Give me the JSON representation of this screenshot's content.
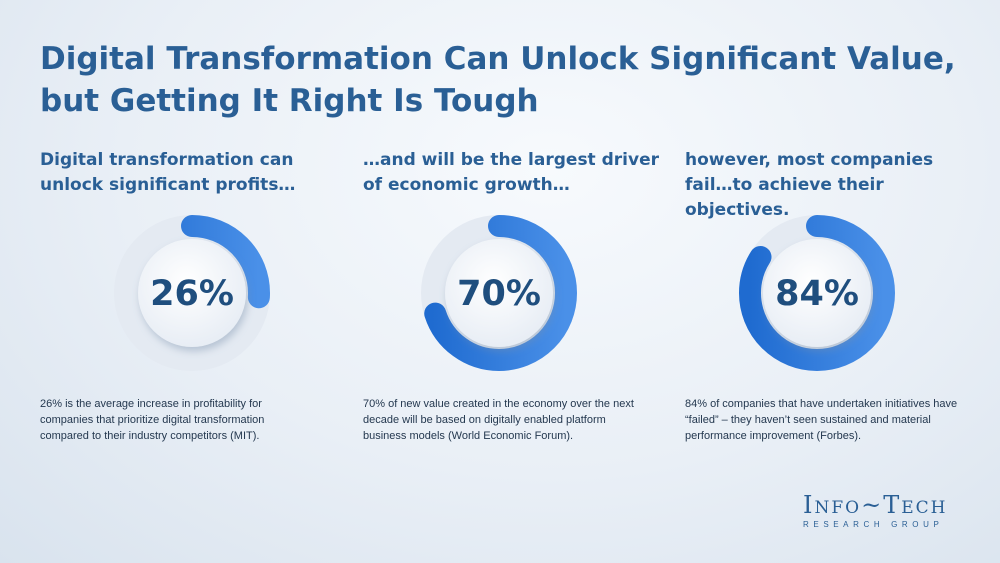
{
  "title": "Digital Transformation Can Unlock Significant Value, but Getting It Right Is Tough",
  "colors": {
    "title": "#2a5f95",
    "ring_dark": "#1f6bd0",
    "ring_light": "#4a90e8",
    "track": "#e4eaf2"
  },
  "chart_data": [
    {
      "type": "pie",
      "heading": "Digital transformation can unlock significant profits…",
      "value": 26,
      "label": "26%",
      "description": "26% is the average increase in profitability for companies that prioritize digital transformation compared to their industry competitors (MIT)."
    },
    {
      "type": "pie",
      "heading": "…and will be the largest driver of economic growth…",
      "value": 70,
      "label": "70%",
      "description": "70% of new value created in the economy over the next decade will be based on digitally enabled platform business models (World Economic Forum)."
    },
    {
      "type": "pie",
      "heading": "however, most companies fail…to achieve their objectives.",
      "value": 84,
      "label": "84%",
      "description": "84% of companies that have undertaken initiatives have “failed” – they haven’t seen sustained and material performance improvement (Forbes)."
    }
  ],
  "logo": {
    "main": "Info~Tech",
    "sub": "RESEARCH GROUP"
  }
}
